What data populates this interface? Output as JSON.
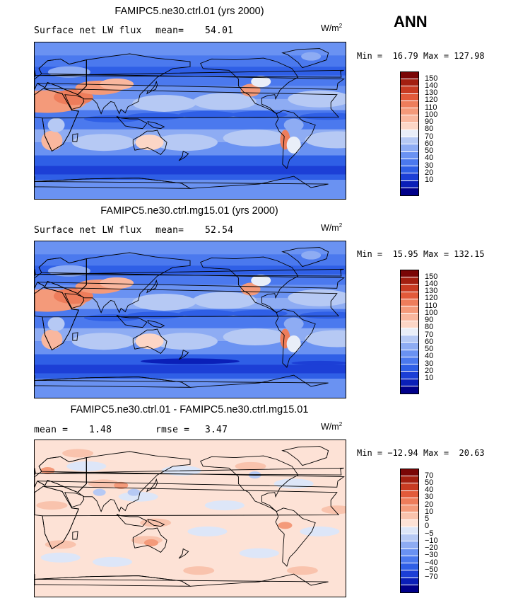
{
  "season": "ANN",
  "colors": {
    "abs_levels": [
      "#00008a",
      "#0a1fb8",
      "#1c3fd6",
      "#2f5fe6",
      "#4b79ee",
      "#6a92f2",
      "#8eacf3",
      "#b6c9f4",
      "#e9eef8",
      "#fcd6c6",
      "#f9b79e",
      "#f49a7a",
      "#ee7d5b",
      "#e25a3a",
      "#c83b22",
      "#a31f10",
      "#7a0606"
    ],
    "diff_levels": [
      "#00008a",
      "#0a1fb8",
      "#1c3fd6",
      "#2f5fe6",
      "#4b79ee",
      "#6a92f2",
      "#8eacf3",
      "#b6c9f4",
      "#dde6f8",
      "#fde2d6",
      "#f9c3ad",
      "#f49a7a",
      "#ee7d5b",
      "#e25a3a",
      "#c83b22",
      "#a31f10",
      "#7a0606"
    ]
  },
  "panels": [
    {
      "title": "FAMIPC5.ne30.ctrl.01 (yrs 2000)",
      "left_label": "Surface net LW flux",
      "stat_label": "mean=",
      "stat_value": "54.01",
      "units": "W/m",
      "units_exp": "2",
      "min_label": "Min =",
      "min_value": "16.79",
      "max_label": "Max =",
      "max_value": "127.98",
      "colorbar_ticks": [
        "150",
        "140",
        "130",
        "120",
        "110",
        "100",
        "90",
        "80",
        "70",
        "60",
        "50",
        "40",
        "30",
        "20",
        "10"
      ],
      "map_kind": "abs"
    },
    {
      "title": "FAMIPC5.ne30.ctrl.mg15.01 (yrs 2000)",
      "left_label": "Surface net LW flux",
      "stat_label": "mean=",
      "stat_value": "52.54",
      "units": "W/m",
      "units_exp": "2",
      "min_label": "Min =",
      "min_value": "15.95",
      "max_label": "Max =",
      "max_value": "132.15",
      "colorbar_ticks": [
        "150",
        "140",
        "130",
        "120",
        "110",
        "100",
        "90",
        "80",
        "70",
        "60",
        "50",
        "40",
        "30",
        "20",
        "10"
      ],
      "map_kind": "abs"
    },
    {
      "title": "FAMIPC5.ne30.ctrl.01 - FAMIPC5.ne30.ctrl.mg15.01",
      "left_label": "mean =",
      "left_value": "1.48",
      "stat_label": "rmse =",
      "stat_value": "3.47",
      "units": "W/m",
      "units_exp": "2",
      "min_label": "Min =",
      "min_value": "−12.94",
      "max_label": "Max =",
      "max_value": "20.63",
      "colorbar_ticks": [
        "70",
        "50",
        "40",
        "30",
        "20",
        "10",
        "5",
        "0",
        "−5",
        "−10",
        "−20",
        "−30",
        "−40",
        "−50",
        "−70"
      ],
      "map_kind": "diff"
    }
  ]
}
